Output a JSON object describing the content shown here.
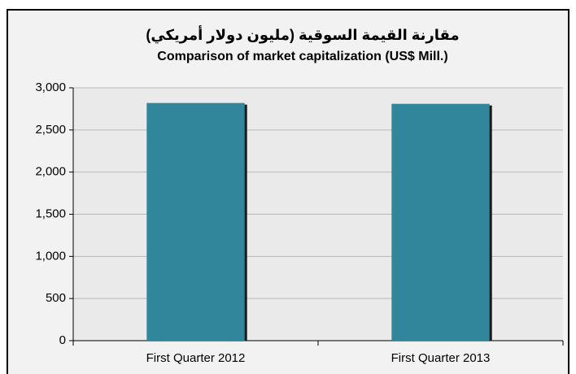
{
  "chart_data": {
    "type": "bar",
    "title": "مقارنة القيمة السوقية (مليون دولار أمريكي)",
    "subtitle": "Comparison of market capitalization (US$  Mill.)",
    "categories": [
      "First Quarter 2012",
      "First Quarter 2013"
    ],
    "values": [
      2820,
      2810
    ],
    "color": "#31869b",
    "ylim": [
      0,
      3000
    ],
    "yticks": [
      0,
      500,
      {
        "value": 1000,
        "label": "1,000"
      },
      {
        "value": 1500,
        "label": "1,500"
      },
      {
        "value": 2000,
        "label": "2,000"
      },
      {
        "value": 2500,
        "label": "2,500"
      },
      {
        "value": 3000,
        "label": "3,000"
      }
    ],
    "grid": true
  }
}
